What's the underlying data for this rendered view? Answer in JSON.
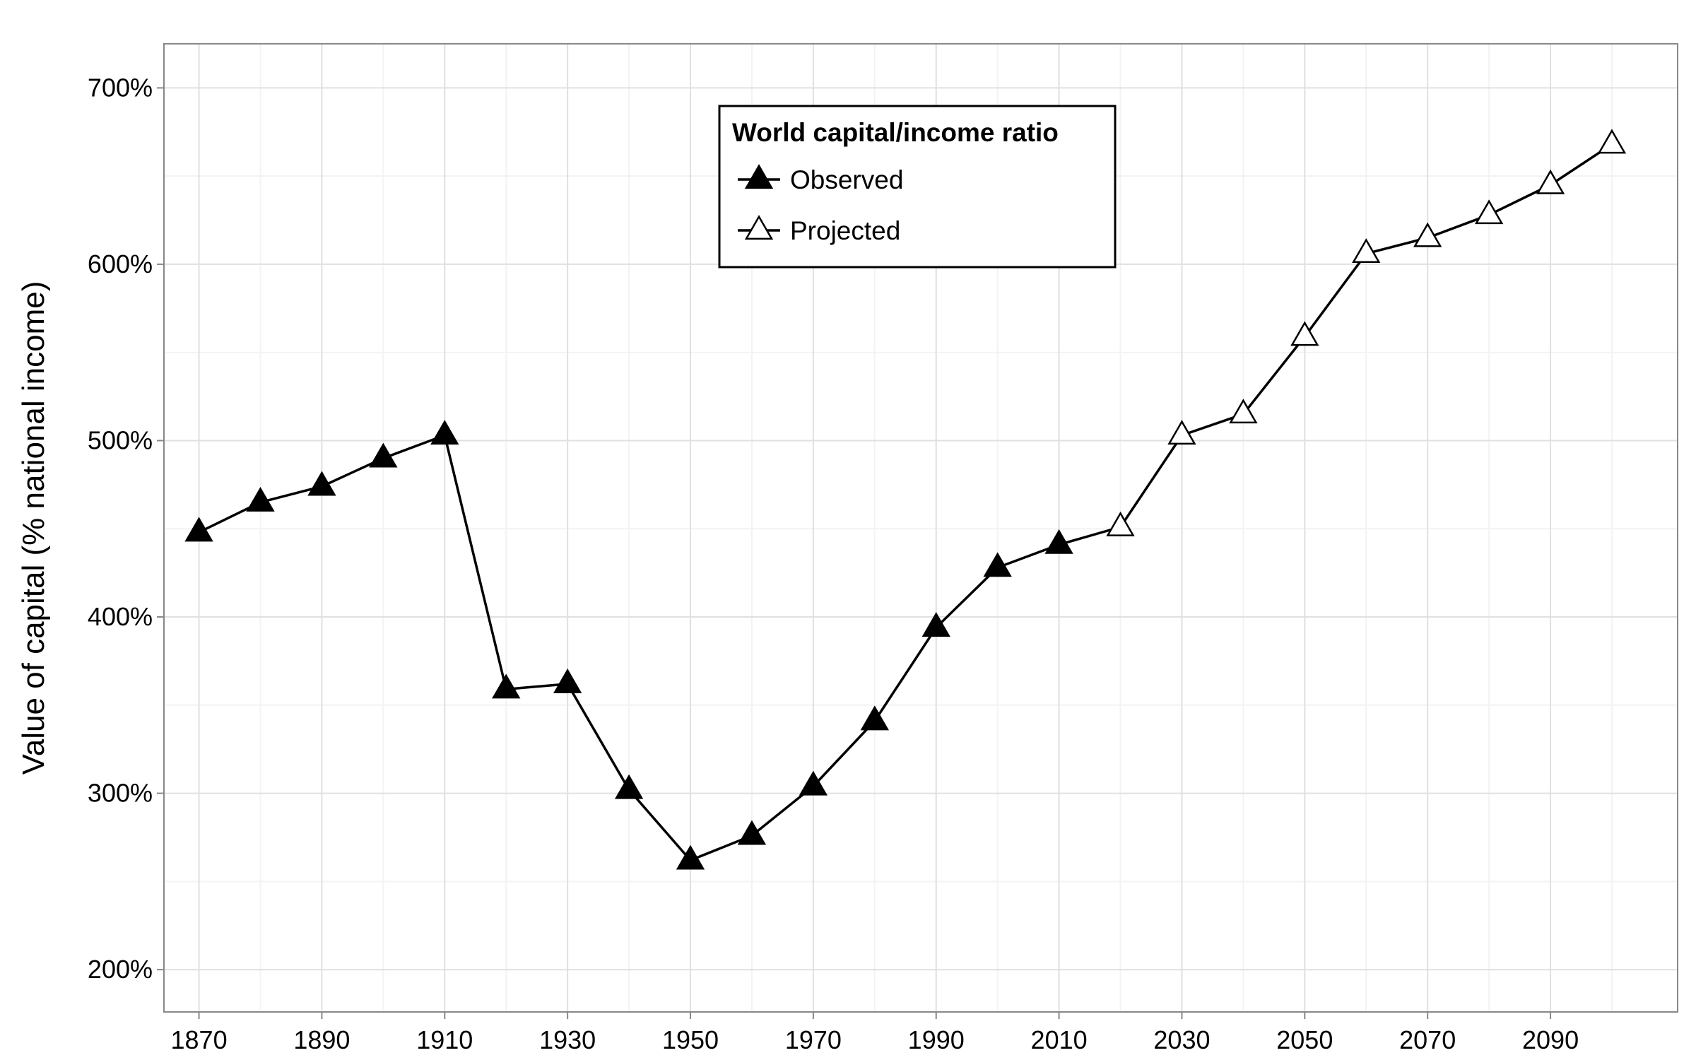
{
  "chart_data": {
    "type": "line",
    "title": "",
    "xlabel": "",
    "ylabel": "Value of capital (% national income)",
    "x_ticks": [
      1870,
      1890,
      1910,
      1930,
      1950,
      1970,
      1990,
      2010,
      2030,
      2050,
      2070,
      2090
    ],
    "y_ticks": [
      200,
      300,
      400,
      500,
      600,
      700
    ],
    "y_tick_labels": [
      "200%",
      "300%",
      "400%",
      "500%",
      "600%",
      "700%"
    ],
    "xlim": [
      1864.3,
      2110.7
    ],
    "ylim": [
      176,
      725
    ],
    "grid": true,
    "legend": {
      "title": "World capital/income ratio",
      "placement": "top-center",
      "entries": [
        "Observed",
        "Projected"
      ]
    },
    "series": [
      {
        "name": "Observed",
        "marker": "filled-triangle",
        "x": [
          1870,
          1880,
          1890,
          1900,
          1910,
          1920,
          1930,
          1940,
          1950,
          1960,
          1970,
          1980,
          1990,
          2000,
          2010
        ],
        "values": [
          448,
          465,
          474,
          490,
          503,
          359,
          362,
          302,
          262,
          276,
          304,
          341,
          394,
          428,
          441
        ]
      },
      {
        "name": "Projected",
        "marker": "open-triangle",
        "x": [
          2010,
          2020,
          2030,
          2040,
          2050,
          2060,
          2070,
          2080,
          2090,
          2100
        ],
        "values": [
          441,
          451,
          503,
          515,
          559,
          606,
          615,
          628,
          645,
          668
        ]
      }
    ],
    "colors": {
      "line": "#000000",
      "grid_major": "#e0e0e0",
      "grid_minor": "#f3f3f3",
      "panel_border": "#888888",
      "background": "#ffffff"
    }
  }
}
